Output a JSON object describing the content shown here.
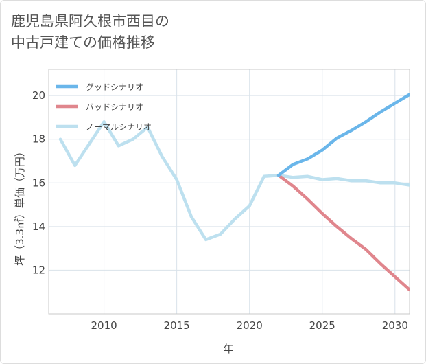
{
  "title": "鹿児島県阿久根市西目の\n中古戸建ての価格推移",
  "chart_data": {
    "type": "line",
    "xlabel": "年",
    "ylabel": "坪（3.3㎡）単価（万円）",
    "xlim": [
      2006.2,
      2031
    ],
    "ylim": [
      10.0,
      21.2
    ],
    "xticks": [
      2010,
      2015,
      2020,
      2025,
      2030
    ],
    "yticks": [
      12,
      14,
      16,
      18,
      20
    ],
    "grid": true,
    "legend_position": "top-left",
    "series": [
      {
        "name": "グッドシナリオ",
        "color": "#6ab6ea",
        "x": [
          2022,
          2023,
          2024,
          2025,
          2026,
          2027,
          2028,
          2029,
          2030,
          2031
        ],
        "y": [
          16.35,
          16.85,
          17.1,
          17.5,
          18.05,
          18.4,
          18.8,
          19.25,
          19.65,
          20.05
        ]
      },
      {
        "name": "バッドシナリオ",
        "color": "#e0868d",
        "x": [
          2022,
          2023,
          2024,
          2025,
          2026,
          2027,
          2028,
          2029,
          2030,
          2031
        ],
        "y": [
          16.35,
          15.85,
          15.25,
          14.6,
          14.0,
          13.45,
          12.95,
          12.3,
          11.7,
          11.1
        ]
      },
      {
        "name": "ノーマルシナリオ",
        "color": "#bde0ef",
        "x": [
          2007,
          2008,
          2009,
          2010,
          2011,
          2012,
          2013,
          2014,
          2015,
          2016,
          2017,
          2018,
          2019,
          2020,
          2021,
          2022,
          2023,
          2024,
          2025,
          2026,
          2027,
          2028,
          2029,
          2030,
          2031
        ],
        "y": [
          18.0,
          16.8,
          17.8,
          18.8,
          17.7,
          18.0,
          18.55,
          17.2,
          16.15,
          14.45,
          13.4,
          13.65,
          14.35,
          14.95,
          16.3,
          16.35,
          16.25,
          16.3,
          16.15,
          16.2,
          16.1,
          16.1,
          16.0,
          16.0,
          15.9
        ]
      }
    ]
  }
}
